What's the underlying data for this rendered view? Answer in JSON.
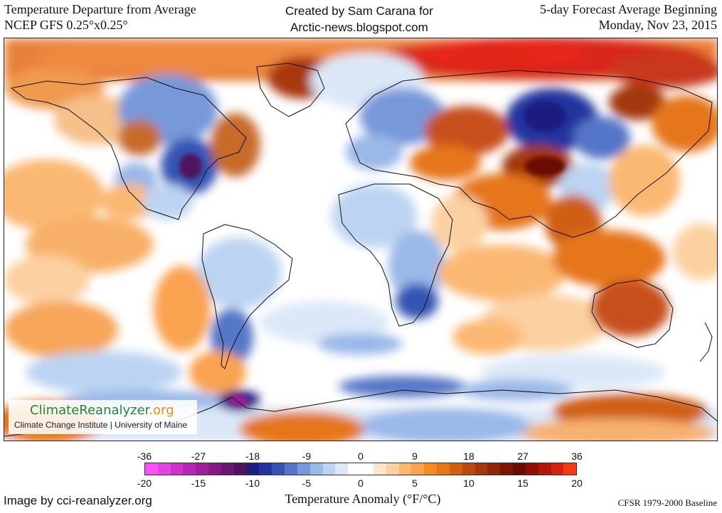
{
  "header": {
    "title_line1": "Temperature Departure from Average",
    "title_line2": "NCEP GFS 0.25°x0.25°",
    "creator_line1": "Created by Sam Carana for",
    "creator_line2": "Arctic-news.blogspot.com",
    "forecast_line1": "5-day Forecast Average Beginning",
    "forecast_line2": "Monday, Nov 23, 2015"
  },
  "logo": {
    "name_main": "ClimateReanalyzer",
    "name_suffix": ".org",
    "subtitle": "Climate Change Institute | University of Maine"
  },
  "legend": {
    "fahrenheit_ticks": [
      "-36",
      "-27",
      "-18",
      "-9",
      "0",
      "9",
      "18",
      "27",
      "36"
    ],
    "celsius_ticks": [
      "-20",
      "-15",
      "-10",
      "-5",
      "0",
      "5",
      "10",
      "15",
      "20"
    ],
    "colors": [
      "#f752f7",
      "#e344e0",
      "#cc33c9",
      "#b526b3",
      "#9c1f9c",
      "#831a85",
      "#6b1670",
      "#4f145e",
      "#1c1e80",
      "#23349e",
      "#3654b4",
      "#5576c8",
      "#7798d9",
      "#9ab8e8",
      "#bcd4f2",
      "#dce8f8",
      "#ffffff",
      "#ffffff",
      "#fde6cc",
      "#fcd0a0",
      "#fbb873",
      "#f9a24f",
      "#f38a22",
      "#e6761a",
      "#d05f14",
      "#b94b10",
      "#a2380c",
      "#8e2608",
      "#7a1805",
      "#6a0d04",
      "#8c1006",
      "#b0170a",
      "#d0220e",
      "#f03c14"
    ],
    "axis_label": "Temperature Anomaly (°F/°C)"
  },
  "footer": {
    "image_credit": "Image by cci-reanalyzer.org",
    "baseline": "CFSR 1979-2000 Baseline"
  }
}
